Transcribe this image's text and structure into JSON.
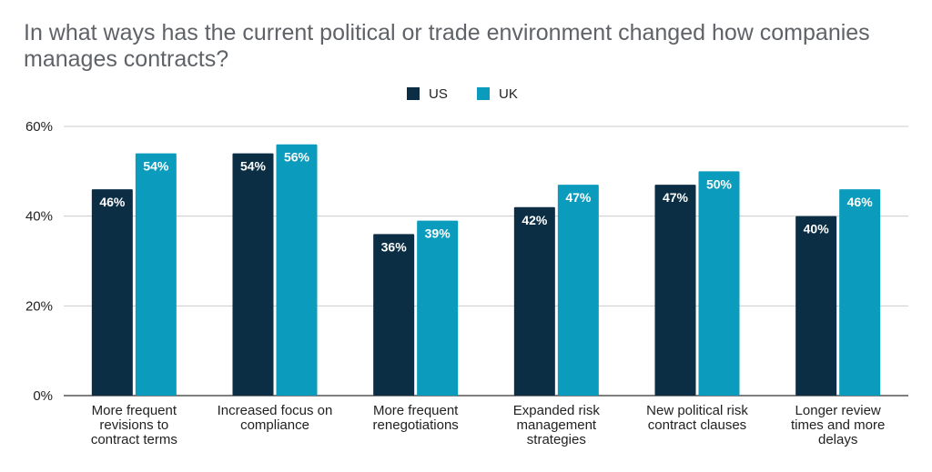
{
  "chart_data": {
    "type": "bar",
    "title": "In what ways has the current political or trade environment changed how companies manages contracts?",
    "xlabel": "",
    "ylabel": "",
    "ylim": [
      0,
      60
    ],
    "yticks": [
      0,
      20,
      40,
      60
    ],
    "tick_suffix": "%",
    "grid": true,
    "legend_position": "top-center",
    "categories": [
      [
        "More frequent",
        "revisions to",
        "contract terms"
      ],
      [
        "Increased focus on",
        "compliance"
      ],
      [
        "More frequent",
        "renegotiations"
      ],
      [
        "Expanded risk",
        "management",
        "strategies"
      ],
      [
        "New political risk",
        "contract clauses"
      ],
      [
        "Longer review",
        "times and more",
        "delays"
      ]
    ],
    "series": [
      {
        "name": "US",
        "color": "#0b2e45",
        "values": [
          46,
          54,
          36,
          42,
          47,
          40
        ],
        "labels": [
          "46%",
          "54%",
          "36%",
          "42%",
          "47%",
          "40%"
        ]
      },
      {
        "name": "UK",
        "color": "#0b9cbd",
        "values": [
          54,
          56,
          39,
          47,
          50,
          46
        ],
        "labels": [
          "54%",
          "56%",
          "39%",
          "47%",
          "50%",
          "46%"
        ]
      }
    ]
  }
}
